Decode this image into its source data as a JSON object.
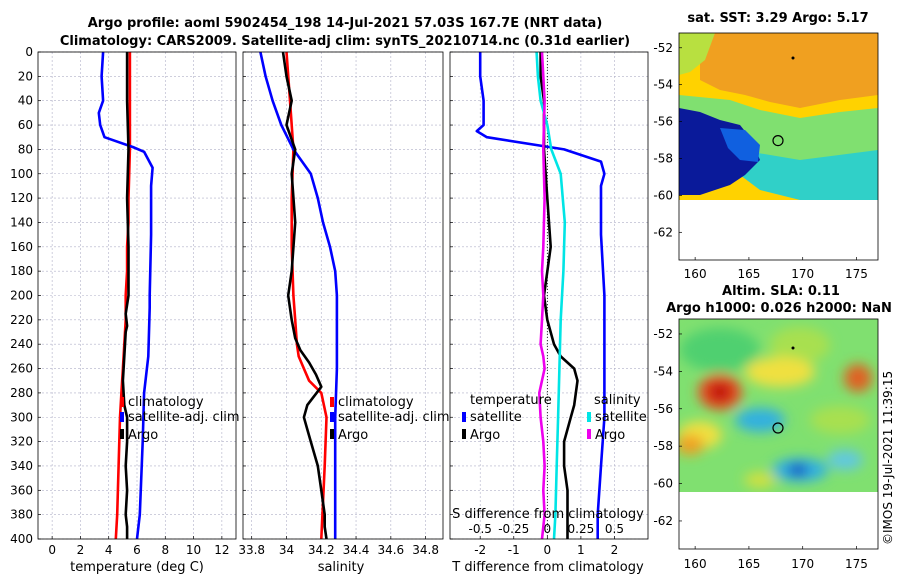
{
  "figure": {
    "title_line1": "Argo profile: aoml 5902454_198 14-Jul-2021 57.03S 167.7E (NRT data)",
    "title_line2": "Climatology: CARS2009. Satellite-adj clim: synTS_20210714.nc (0.31d earlier)",
    "credit": "©IMOS 19-Jul-2021 11:39:15"
  },
  "colors": {
    "climatology": "#ff0000",
    "satellite": "#0000ff",
    "argo": "#000000",
    "sal_satellite": "#00e5e5",
    "sal_argo": "#ee00ee",
    "grid": "#b0b0c8"
  },
  "chart_data": [
    {
      "id": "temperature",
      "type": "line",
      "xlabel": "temperature (deg C)",
      "ylabel": "",
      "xlim": [
        -1,
        13
      ],
      "ylim": [
        400,
        0
      ],
      "xticks": [
        0,
        2,
        4,
        6,
        8,
        10,
        12
      ],
      "yticks": [
        0,
        20,
        40,
        60,
        80,
        100,
        120,
        140,
        160,
        180,
        200,
        220,
        240,
        260,
        280,
        300,
        320,
        340,
        360,
        380,
        400
      ],
      "grid": true,
      "legend": [
        "climatology",
        "satellite-adj. clim",
        "Argo"
      ],
      "series": [
        {
          "name": "climatology",
          "color": "#ff0000",
          "x": [
            5.5,
            5.5,
            5.5,
            5.4,
            5.4,
            5.3,
            5.3,
            5.2,
            5.2,
            5.1,
            5.0,
            4.9,
            4.8,
            4.7,
            4.6,
            4.5
          ],
          "y": [
            0,
            40,
            80,
            120,
            140,
            160,
            180,
            200,
            220,
            240,
            260,
            280,
            300,
            340,
            380,
            400
          ]
        },
        {
          "name": "satellite-adj. clim",
          "color": "#0000ff",
          "x": [
            3.6,
            3.5,
            3.6,
            3.3,
            3.4,
            3.7,
            5.7,
            6.5,
            7.1,
            7.0,
            7.0,
            6.9,
            6.9,
            6.8,
            6.5,
            6.4,
            6.2,
            6.0
          ],
          "y": [
            0,
            20,
            40,
            50,
            60,
            70,
            78,
            82,
            95,
            110,
            150,
            200,
            210,
            250,
            280,
            320,
            380,
            400
          ]
        },
        {
          "name": "Argo",
          "color": "#000000",
          "x": [
            5.3,
            5.3,
            5.4,
            5.3,
            5.4,
            5.4,
            5.2,
            5.3,
            5.2,
            5.1,
            5.0,
            5.1,
            5.3,
            5.3,
            5.2,
            5.3,
            5.2,
            5.3,
            5.3
          ],
          "y": [
            0,
            40,
            80,
            120,
            160,
            200,
            215,
            225,
            230,
            250,
            270,
            290,
            300,
            320,
            340,
            360,
            380,
            390,
            400
          ]
        }
      ]
    },
    {
      "id": "salinity",
      "type": "line",
      "xlabel": "salinity",
      "ylabel": "",
      "xlim": [
        33.75,
        34.9
      ],
      "ylim": [
        400,
        0
      ],
      "xticks": [
        33.8,
        34,
        34.2,
        34.4,
        34.6,
        34.8
      ],
      "grid": true,
      "legend": [
        "climatology",
        "satellite-adj. clim",
        "Argo"
      ],
      "series": [
        {
          "name": "climatology",
          "color": "#ff0000",
          "x": [
            34.0,
            34.02,
            34.04,
            34.03,
            34.03,
            34.04,
            34.05,
            34.06,
            34.07,
            34.1,
            34.13,
            34.2,
            34.23,
            34.22,
            34.2
          ],
          "y": [
            0,
            40,
            80,
            120,
            160,
            200,
            220,
            240,
            250,
            260,
            270,
            280,
            300,
            340,
            400
          ]
        },
        {
          "name": "satellite-adj. clim",
          "color": "#0000ff",
          "x": [
            33.85,
            33.88,
            33.92,
            33.97,
            34.04,
            34.14,
            34.18,
            34.21,
            34.25,
            34.28,
            34.29,
            34.29,
            34.28,
            34.28
          ],
          "y": [
            0,
            20,
            40,
            60,
            80,
            100,
            120,
            140,
            160,
            180,
            200,
            260,
            300,
            400
          ]
        },
        {
          "name": "Argo",
          "color": "#000000",
          "x": [
            33.98,
            34.0,
            34.03,
            34.0,
            34.05,
            34.03,
            34.05,
            34.03,
            34.01,
            34.03,
            34.05,
            34.08,
            34.13,
            34.17,
            34.2,
            34.12,
            34.1,
            34.12,
            34.14,
            34.18,
            34.2,
            34.22,
            34.22,
            34.23
          ],
          "y": [
            0,
            20,
            40,
            60,
            80,
            100,
            140,
            180,
            200,
            220,
            235,
            245,
            255,
            265,
            275,
            290,
            300,
            310,
            320,
            340,
            360,
            380,
            390,
            400
          ]
        }
      ]
    },
    {
      "id": "differences",
      "type": "line",
      "xlabel": "T difference from climatology",
      "top_xlabel": "S difference from climatology",
      "xlim": [
        -2.9,
        3.0
      ],
      "top_xlim": [
        -0.725,
        0.75
      ],
      "ylim": [
        400,
        0
      ],
      "xticks": [
        -2,
        -1,
        0,
        1,
        2
      ],
      "top_xticks": [
        -0.5,
        -0.25,
        0,
        0.25,
        0.5
      ],
      "top_xtick_labels": [
        "-0.5",
        "-0.25",
        "0",
        "0.25",
        "0.5"
      ],
      "grid": true,
      "legend_temperature_title": "temperature",
      "legend_salinity_title": "salinity",
      "legend": [
        "satellite",
        "Argo"
      ],
      "series": [
        {
          "name": "T satellite",
          "color": "#0000ff",
          "x": [
            -2.0,
            -2.0,
            -1.9,
            -1.9,
            -2.1,
            -1.8,
            0.5,
            1.6,
            1.7,
            1.6,
            1.6,
            1.7,
            1.7,
            1.7,
            1.6,
            1.5,
            1.5
          ],
          "y": [
            0,
            20,
            40,
            60,
            65,
            70,
            80,
            90,
            100,
            110,
            150,
            200,
            250,
            300,
            340,
            380,
            400
          ]
        },
        {
          "name": "T Argo",
          "color": "#000000",
          "x": [
            -0.2,
            -0.2,
            -0.1,
            -0.1,
            0.0,
            0.1,
            -0.1,
            0.0,
            0.2,
            0.4,
            0.8,
            0.9,
            0.8,
            0.7,
            0.5,
            0.5,
            0.6,
            0.6
          ],
          "y": [
            0,
            20,
            40,
            80,
            120,
            160,
            200,
            220,
            240,
            250,
            260,
            270,
            290,
            300,
            320,
            340,
            360,
            400
          ]
        },
        {
          "name": "S satellite",
          "color": "#00e5e5",
          "x": [
            -0.08,
            -0.07,
            -0.05,
            0.0,
            0.03,
            0.1,
            0.13,
            0.12,
            0.1,
            0.09,
            0.08,
            0.07,
            0.06,
            0.05
          ],
          "y": [
            0,
            20,
            40,
            60,
            80,
            100,
            140,
            180,
            220,
            260,
            300,
            340,
            380,
            400
          ]
        },
        {
          "name": "S Argo",
          "color": "#ee00ee",
          "x": [
            -0.04,
            -0.03,
            -0.02,
            -0.03,
            -0.02,
            -0.03,
            -0.04,
            -0.03,
            -0.04,
            -0.05,
            -0.03,
            -0.02,
            -0.06,
            -0.05,
            -0.03,
            -0.02,
            -0.03,
            -0.02,
            -0.03,
            -0.04
          ],
          "y": [
            0,
            20,
            40,
            80,
            120,
            160,
            180,
            200,
            220,
            240,
            250,
            260,
            280,
            300,
            320,
            340,
            360,
            380,
            390,
            400
          ]
        }
      ]
    },
    {
      "id": "sst_map",
      "type": "heatmap",
      "title": "sat. SST: 3.29 Argo: 5.17",
      "xlim": [
        158.5,
        177
      ],
      "ylim": [
        -63.5,
        -51.2
      ],
      "xticks": [
        160,
        165,
        170,
        175
      ],
      "yticks": [
        -52,
        -54,
        -56,
        -58,
        -60,
        -62
      ],
      "profile_lon": 167.7,
      "profile_lat": -57.03
    },
    {
      "id": "sla_map",
      "type": "heatmap",
      "title_line1": "Altim. SLA: 0.11",
      "title_line2": "Argo h1000: 0.026 h2000: NaN",
      "xlim": [
        158.5,
        177
      ],
      "ylim": [
        -63.5,
        -51.2
      ],
      "xticks": [
        160,
        165,
        170,
        175
      ],
      "yticks": [
        -52,
        -54,
        -56,
        -58,
        -60,
        -62
      ],
      "profile_lon": 167.7,
      "profile_lat": -57.03
    }
  ]
}
